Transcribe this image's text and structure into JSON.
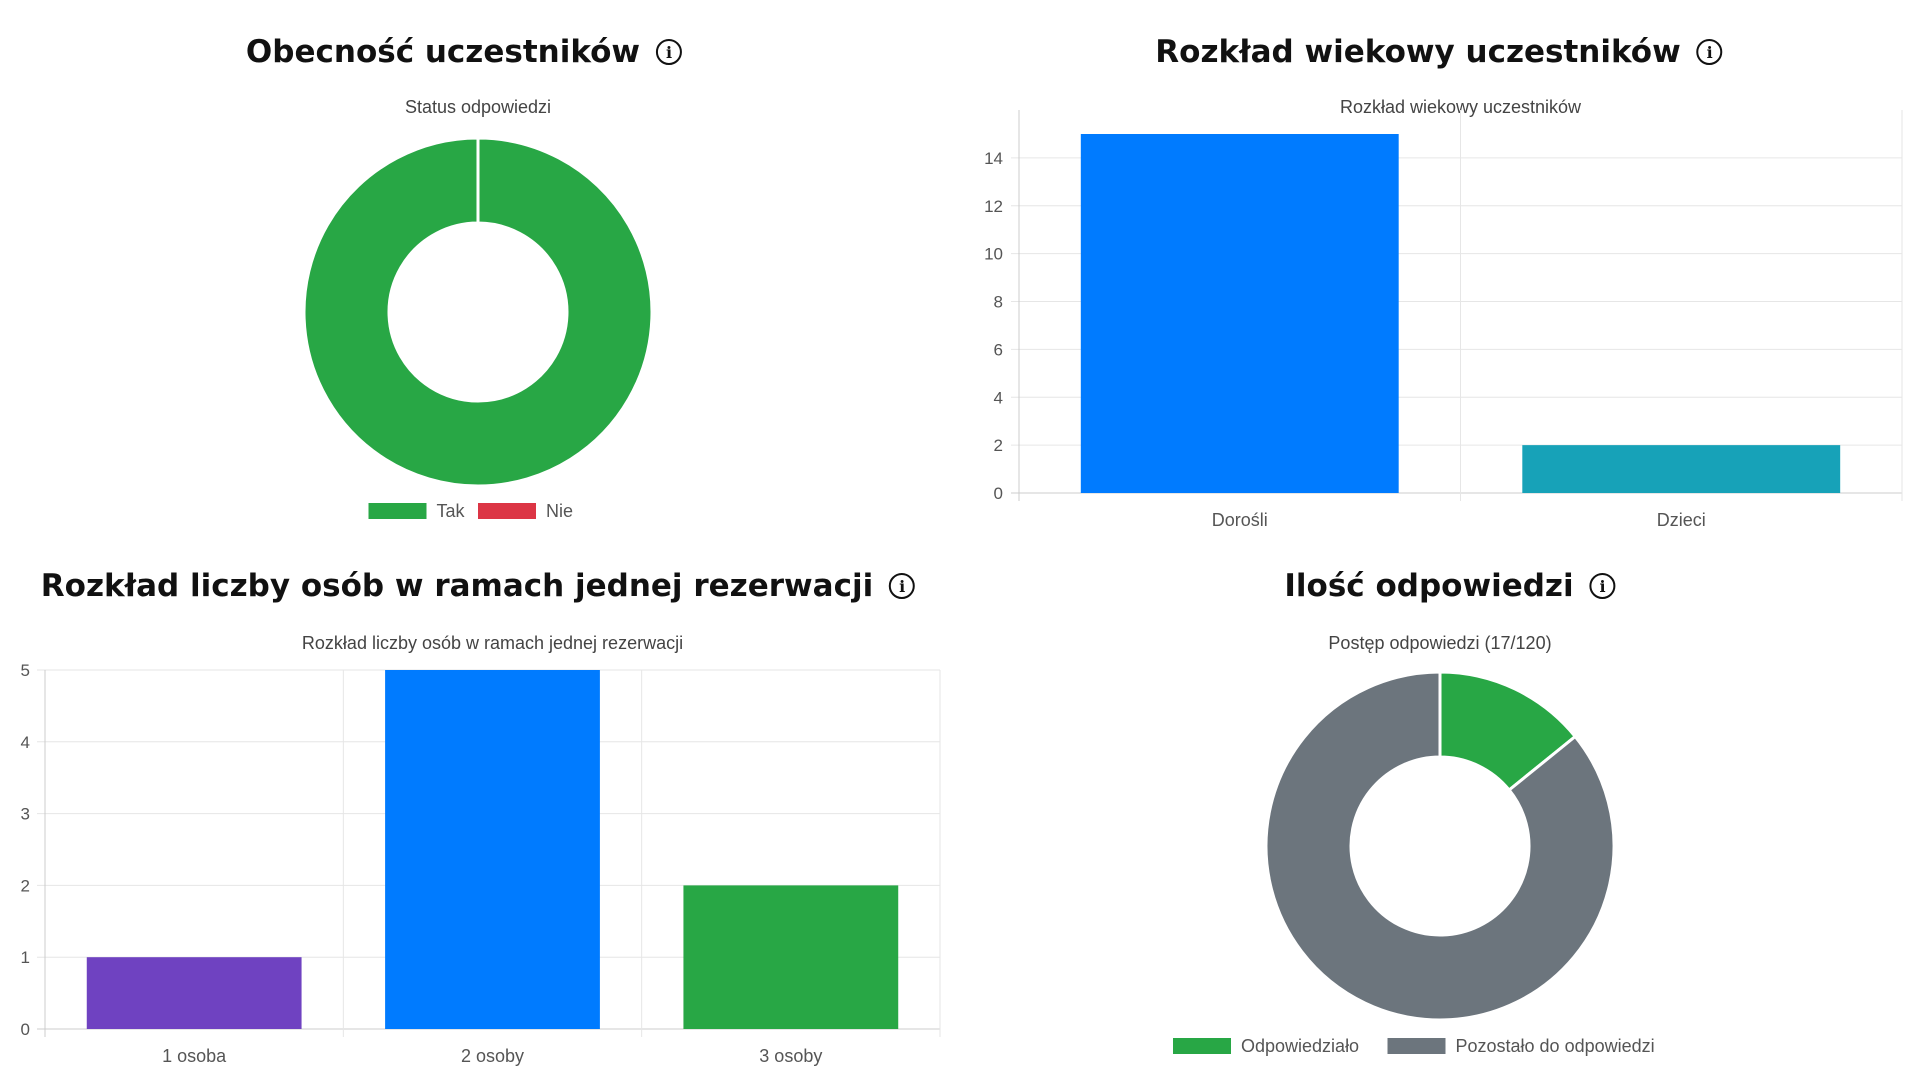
{
  "panels": [
    {
      "title": "Obecność uczestników",
      "info_icon": "info-circle-icon"
    },
    {
      "title": "Rozkład wiekowy uczestników",
      "info_icon": "info-circle-icon"
    },
    {
      "title": "Rozkład liczby osób w ramach jednej rezerwacji",
      "info_icon": "info-circle-icon"
    },
    {
      "title": "Ilość odpowiedzi",
      "info_icon": "info-circle-icon"
    }
  ],
  "chart_data": [
    {
      "type": "doughnut",
      "title": "Status odpowiedzi",
      "categories": [
        "Tak",
        "Nie"
      ],
      "values": [
        17,
        0
      ],
      "colors": [
        "#28a745",
        "#dc3545"
      ],
      "legend": "bottom"
    },
    {
      "type": "bar",
      "title": "Rozkład wiekowy uczestników",
      "categories": [
        "Dorośli",
        "Dzieci"
      ],
      "values": [
        15,
        2
      ],
      "colors": [
        "#007bff",
        "#17a2b8"
      ],
      "ylim": [
        0,
        15
      ],
      "yticks": [
        0,
        2,
        4,
        6,
        8,
        10,
        12,
        14
      ],
      "grid": true
    },
    {
      "type": "bar",
      "title": "Rozkład liczby osób w ramach jednej rezerwacji",
      "categories": [
        "1 osoba",
        "2 osoby",
        "3 osoby"
      ],
      "values": [
        1,
        5,
        2
      ],
      "colors": [
        "#6f42c1",
        "#007bff",
        "#28a745"
      ],
      "ylim": [
        0,
        5
      ],
      "yticks": [
        0,
        1,
        2,
        3,
        4,
        5
      ],
      "grid": true
    },
    {
      "type": "doughnut",
      "title": "Postęp odpowiedzi (17/120)",
      "categories": [
        "Odpowiedziało",
        "Pozostało do odpowiedzi"
      ],
      "values": [
        17,
        103
      ],
      "colors": [
        "#28a745",
        "#6c757d"
      ],
      "legend": "bottom"
    }
  ]
}
